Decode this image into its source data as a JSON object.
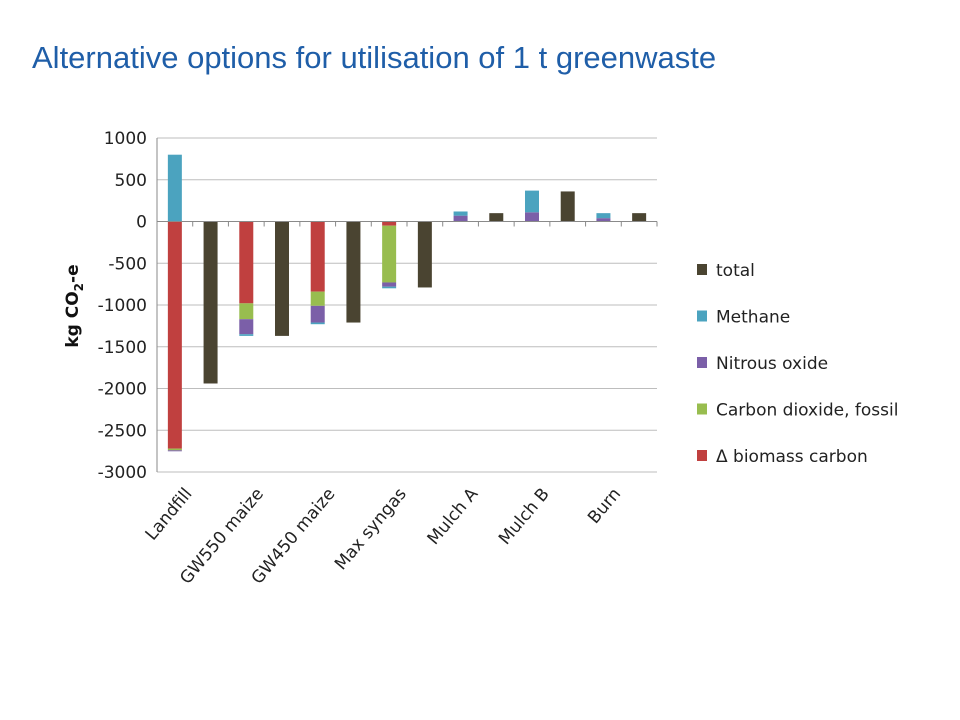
{
  "slide": {
    "title": "Alternative options for utilisation of 1 t greenwaste"
  },
  "chart_data": {
    "type": "bar",
    "stacked": true,
    "ylabel_parts": [
      "kg CO",
      "2",
      "-e"
    ],
    "ylim": [
      -3000,
      1000
    ],
    "yticks": [
      1000,
      500,
      0,
      -500,
      -1000,
      -1500,
      -2000,
      -2500,
      -3000
    ],
    "grid": true,
    "legend_position": "right",
    "category_labels": [
      "Landfill",
      "GW550 maize",
      "GW450 maize",
      "Max syngas",
      "Mulch A",
      "Mulch B",
      "Burn"
    ],
    "series": [
      {
        "name": "total",
        "color": "#4a4431"
      },
      {
        "name": "Methane",
        "color": "#4ba3bf"
      },
      {
        "name": "Nitrous oxide",
        "color": "#7b5fa8"
      },
      {
        "name": "Carbon dioxide, fossil",
        "color": "#98bd4f"
      },
      {
        "name": "Δ biomass carbon",
        "color": "#c0403f"
      }
    ],
    "bars": [
      {
        "category": "Landfill",
        "kind": "components",
        "Δ biomass carbon": -2720,
        "Carbon dioxide, fossil": -20,
        "Nitrous oxide": -10,
        "Methane": 800
      },
      {
        "category": "Landfill",
        "kind": "total",
        "total": -1940
      },
      {
        "category": "GW550 maize",
        "kind": "components",
        "Δ biomass carbon": -980,
        "Carbon dioxide, fossil": -190,
        "Nitrous oxide": -180,
        "Methane": -20
      },
      {
        "category": "GW550 maize",
        "kind": "total",
        "total": -1370
      },
      {
        "category": "GW450 maize",
        "kind": "components",
        "Δ biomass carbon": -840,
        "Carbon dioxide, fossil": -170,
        "Nitrous oxide": -200,
        "Methane": -20
      },
      {
        "category": "GW450 maize",
        "kind": "total",
        "total": -1210
      },
      {
        "category": "Max syngas",
        "kind": "components",
        "Δ biomass carbon": -50,
        "Carbon dioxide, fossil": -680,
        "Nitrous oxide": -50,
        "Methane": -20
      },
      {
        "category": "Max syngas",
        "kind": "total",
        "total": -790
      },
      {
        "category": "Mulch A",
        "kind": "components",
        "Nitrous oxide": 70,
        "Methane": 50
      },
      {
        "category": "Mulch A",
        "kind": "total",
        "total": 100
      },
      {
        "category": "Mulch B",
        "kind": "components",
        "Nitrous oxide": 110,
        "Methane": 260
      },
      {
        "category": "Mulch B",
        "kind": "total",
        "total": 360
      },
      {
        "category": "Burn",
        "kind": "components",
        "Nitrous oxide": 40,
        "Methane": 60
      },
      {
        "category": "Burn",
        "kind": "total",
        "total": 100
      }
    ]
  }
}
